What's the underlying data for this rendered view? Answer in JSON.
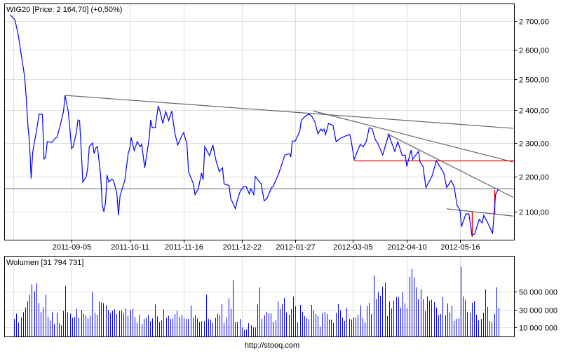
{
  "chart_data": [
    {
      "type": "line",
      "title": "WIG20 [Price: 2 164,70] (+0,50%)",
      "y_scale": "log",
      "ylim": [
        2022,
        2750
      ],
      "grid": true,
      "line_color": "#0000ff",
      "x_ticks": [
        "2011-09-05",
        "2011-10-11",
        "2011-11-16",
        "2011-12-22",
        "2012-01-27",
        "2012-03-05",
        "2012-04-10",
        "2012-05-16"
      ],
      "y_ticks": [
        {
          "value": 2700,
          "label": "2 700,00"
        },
        {
          "value": 2600,
          "label": "2 600,00"
        },
        {
          "value": 2500,
          "label": "2 500,00"
        },
        {
          "value": 2400,
          "label": "2 400,00"
        },
        {
          "value": 2300,
          "label": "2 300,00"
        },
        {
          "value": 2200,
          "label": "2 200,00"
        },
        {
          "value": 2100,
          "label": "2 100,00"
        }
      ],
      "last_price": 2164.7,
      "points": [
        [
          "2011-07-29",
          2722
        ],
        [
          "2011-08-01",
          2705
        ],
        [
          "2011-08-03",
          2652
        ],
        [
          "2011-08-05",
          2580
        ],
        [
          "2011-08-07",
          2509
        ],
        [
          "2011-08-08",
          2441
        ],
        [
          "2011-08-09",
          2353
        ],
        [
          "2011-08-10",
          2299
        ],
        [
          "2011-08-11",
          2194
        ],
        [
          "2011-08-12",
          2272
        ],
        [
          "2011-08-13",
          2300
        ],
        [
          "2011-08-14",
          2327
        ],
        [
          "2011-08-16",
          2389
        ],
        [
          "2011-08-18",
          2387
        ],
        [
          "2011-08-19",
          2251
        ],
        [
          "2011-08-20",
          2257
        ],
        [
          "2011-08-21",
          2303
        ],
        [
          "2011-08-24",
          2301
        ],
        [
          "2011-08-26",
          2314
        ],
        [
          "2011-08-27",
          2316
        ],
        [
          "2011-08-29",
          2353
        ],
        [
          "2011-08-31",
          2396
        ],
        [
          "2011-09-01",
          2448
        ],
        [
          "2011-09-03",
          2396
        ],
        [
          "2011-09-04",
          2342
        ],
        [
          "2011-09-05",
          2282
        ],
        [
          "2011-09-06",
          2288
        ],
        [
          "2011-09-08",
          2331
        ],
        [
          "2011-09-09",
          2370
        ],
        [
          "2011-09-10",
          2368
        ],
        [
          "2011-09-11",
          2278
        ],
        [
          "2011-09-12",
          2184
        ],
        [
          "2011-09-14",
          2198
        ],
        [
          "2011-09-15",
          2225
        ],
        [
          "2011-09-16",
          2288
        ],
        [
          "2011-09-18",
          2299
        ],
        [
          "2011-09-19",
          2267
        ],
        [
          "2011-09-20",
          2284
        ],
        [
          "2011-09-21",
          2288
        ],
        [
          "2011-09-23",
          2204
        ],
        [
          "2011-09-24",
          2118
        ],
        [
          "2011-09-25",
          2100
        ],
        [
          "2011-09-26",
          2124
        ],
        [
          "2011-09-27",
          2204
        ],
        [
          "2011-09-28",
          2184
        ],
        [
          "2011-09-30",
          2192
        ],
        [
          "2011-10-01",
          2188
        ],
        [
          "2011-10-03",
          2152
        ],
        [
          "2011-10-04",
          2090
        ],
        [
          "2011-10-05",
          2144
        ],
        [
          "2011-10-07",
          2174
        ],
        [
          "2011-10-08",
          2190
        ],
        [
          "2011-10-10",
          2267
        ],
        [
          "2011-10-11",
          2282
        ],
        [
          "2011-10-12",
          2316
        ],
        [
          "2011-10-14",
          2276
        ],
        [
          "2011-10-16",
          2303
        ],
        [
          "2011-10-18",
          2288
        ],
        [
          "2011-10-19",
          2295
        ],
        [
          "2011-10-21",
          2225
        ],
        [
          "2011-10-24",
          2314
        ],
        [
          "2011-10-25",
          2370
        ],
        [
          "2011-10-26",
          2346
        ],
        [
          "2011-10-28",
          2346
        ],
        [
          "2011-10-30",
          2414
        ],
        [
          "2011-10-31",
          2400
        ],
        [
          "2011-11-02",
          2359
        ],
        [
          "2011-11-04",
          2396
        ],
        [
          "2011-11-06",
          2368
        ],
        [
          "2011-11-08",
          2398
        ],
        [
          "2011-11-10",
          2331
        ],
        [
          "2011-11-12",
          2293
        ],
        [
          "2011-11-14",
          2314
        ],
        [
          "2011-11-16",
          2331
        ],
        [
          "2011-11-18",
          2295
        ],
        [
          "2011-11-19",
          2214
        ],
        [
          "2011-11-22",
          2178
        ],
        [
          "2011-11-23",
          2148
        ],
        [
          "2011-11-25",
          2164
        ],
        [
          "2011-11-27",
          2210
        ],
        [
          "2011-11-28",
          2190
        ],
        [
          "2011-11-29",
          2288
        ],
        [
          "2011-12-02",
          2261
        ],
        [
          "2011-12-04",
          2293
        ],
        [
          "2011-12-06",
          2246
        ],
        [
          "2011-12-08",
          2214
        ],
        [
          "2011-12-10",
          2225
        ],
        [
          "2011-12-11",
          2178
        ],
        [
          "2011-12-14",
          2174
        ],
        [
          "2011-12-15",
          2138
        ],
        [
          "2011-12-18",
          2108
        ],
        [
          "2011-12-19",
          2130
        ],
        [
          "2011-12-21",
          2158
        ],
        [
          "2011-12-23",
          2170
        ],
        [
          "2011-12-25",
          2170
        ],
        [
          "2011-12-27",
          2150
        ],
        [
          "2011-12-28",
          2164
        ],
        [
          "2011-12-30",
          2148
        ],
        [
          "2011-12-31",
          2200
        ],
        [
          "2012-01-04",
          2178
        ],
        [
          "2012-01-06",
          2130
        ],
        [
          "2012-01-08",
          2138
        ],
        [
          "2012-01-11",
          2168
        ],
        [
          "2012-01-12",
          2170
        ],
        [
          "2012-01-16",
          2210
        ],
        [
          "2012-01-20",
          2263
        ],
        [
          "2012-01-23",
          2267
        ],
        [
          "2012-01-24",
          2257
        ],
        [
          "2012-01-25",
          2305
        ],
        [
          "2012-01-27",
          2305
        ],
        [
          "2012-01-30",
          2335
        ],
        [
          "2012-01-31",
          2368
        ],
        [
          "2012-02-02",
          2379
        ],
        [
          "2012-02-05",
          2389
        ],
        [
          "2012-02-07",
          2381
        ],
        [
          "2012-02-09",
          2363
        ],
        [
          "2012-02-11",
          2327
        ],
        [
          "2012-02-13",
          2342
        ],
        [
          "2012-02-14",
          2335
        ],
        [
          "2012-02-15",
          2342
        ],
        [
          "2012-02-16",
          2325
        ],
        [
          "2012-02-18",
          2359
        ],
        [
          "2012-02-21",
          2353
        ],
        [
          "2012-02-23",
          2303
        ],
        [
          "2012-02-26",
          2314
        ],
        [
          "2012-02-29",
          2320
        ],
        [
          "2012-03-03",
          2325
        ],
        [
          "2012-03-04",
          2305
        ],
        [
          "2012-03-06",
          2250
        ],
        [
          "2012-03-10",
          2295
        ],
        [
          "2012-03-12",
          2288
        ],
        [
          "2012-03-14",
          2303
        ],
        [
          "2012-03-16",
          2346
        ],
        [
          "2012-03-18",
          2342
        ],
        [
          "2012-03-20",
          2310
        ],
        [
          "2012-03-22",
          2295
        ],
        [
          "2012-03-25",
          2263
        ],
        [
          "2012-03-27",
          2295
        ],
        [
          "2012-03-29",
          2325
        ],
        [
          "2012-04-02",
          2274
        ],
        [
          "2012-04-04",
          2303
        ],
        [
          "2012-04-07",
          2261
        ],
        [
          "2012-04-09",
          2263
        ],
        [
          "2012-04-10",
          2229
        ],
        [
          "2012-04-13",
          2278
        ],
        [
          "2012-04-14",
          2250
        ],
        [
          "2012-04-18",
          2274
        ],
        [
          "2012-04-19",
          2242
        ],
        [
          "2012-04-21",
          2229
        ],
        [
          "2012-04-23",
          2168
        ],
        [
          "2012-04-27",
          2200
        ],
        [
          "2012-04-30",
          2246
        ],
        [
          "2012-05-05",
          2210
        ],
        [
          "2012-05-07",
          2168
        ],
        [
          "2012-05-10",
          2188
        ],
        [
          "2012-05-12",
          2170
        ],
        [
          "2012-05-14",
          2118
        ],
        [
          "2012-05-16",
          2104
        ],
        [
          "2012-05-17",
          2059
        ],
        [
          "2012-05-20",
          2094
        ],
        [
          "2012-05-22",
          2094
        ],
        [
          "2012-05-24",
          2036
        ],
        [
          "2012-05-26",
          2040
        ],
        [
          "2012-05-29",
          2079
        ],
        [
          "2012-05-31",
          2069
        ],
        [
          "2012-06-01",
          2090
        ],
        [
          "2012-06-03",
          2075
        ],
        [
          "2012-06-05",
          2059
        ],
        [
          "2012-06-07",
          2040
        ],
        [
          "2012-06-08",
          2094
        ],
        [
          "2012-06-09",
          2148
        ],
        [
          "2012-06-11",
          2165
        ]
      ],
      "annotations": {
        "trendlines": [
          {
            "from": [
              "2011-09-01",
              2448
            ],
            "to": [
              "2012-06-21",
              2344
            ],
            "color": "#666666"
          },
          {
            "from": [
              "2012-02-08",
              2398
            ],
            "to": [
              "2012-06-21",
              2242
            ],
            "color": "#666666"
          },
          {
            "from": [
              "2012-03-28",
              2327
            ],
            "to": [
              "2012-06-21",
              2140
            ],
            "color": "#666666"
          },
          {
            "from": [
              "2012-05-07",
              2108
            ],
            "to": [
              "2012-06-21",
              2088
            ],
            "color": "#666666"
          }
        ],
        "horizontal_levels": [
          {
            "from": "2012-03-06",
            "price": 2246,
            "color": "#ff0000"
          }
        ],
        "vertical_segments": [
          {
            "date": "2012-05-24",
            "from": 2100,
            "to": 2032,
            "color": "#ff0000"
          },
          {
            "date": "2012-06-08",
            "from": 2161,
            "to": 2094,
            "color": "#ff0000"
          }
        ],
        "last_price_line_color": "#666666"
      }
    },
    {
      "type": "bar",
      "title": "Wolumen [31 794 731]",
      "ylim": [
        0,
        90000000
      ],
      "grid": true,
      "bar_color": "#0000ff",
      "y_ticks": [
        {
          "value": 50000000,
          "label": "50 000 000"
        },
        {
          "value": 30000000,
          "label": "30 000 000"
        },
        {
          "value": 10000000,
          "label": "10 000 000"
        }
      ],
      "values_millions": [
        19.4,
        25.3,
        15.5,
        21.4,
        27.1,
        32.3,
        39.5,
        46.4,
        58.1,
        50.3,
        59.6,
        37.2,
        27.1,
        32.5,
        46.4,
        21.7,
        17.8,
        27.1,
        13.9,
        26.3,
        14.7,
        12.4,
        28.6,
        56.5,
        27.1,
        25.5,
        20.9,
        21.7,
        31.0,
        20.9,
        29.4,
        25.5,
        23.2,
        20.1,
        23.2,
        49.5,
        26.3,
        24.0,
        39.5,
        37.9,
        37.2,
        34.8,
        29.4,
        26.3,
        28.6,
        30.2,
        24.8,
        28.6,
        28.6,
        26.3,
        31.0,
        23.2,
        29.4,
        31.0,
        21.7,
        15.5,
        24.0,
        13.9,
        19.4,
        20.9,
        24.0,
        17.0,
        20.1,
        35.6,
        22.4,
        16.3,
        17.8,
        30.2,
        20.9,
        23.2,
        19.4,
        20.1,
        24.8,
        28.6,
        21.7,
        24.0,
        20.1,
        19.4,
        19.4,
        34.8,
        20.9,
        24.0,
        20.1,
        16.3,
        17.0,
        17.0,
        46.4,
        19.4,
        18.6,
        15.5,
        20.9,
        25.5,
        24.0,
        36.4,
        14.7,
        20.9,
        42.6,
        31.0,
        62.7,
        16.3,
        16.3,
        19.4,
        10.1,
        7.0,
        7.7,
        14.7,
        12.4,
        10.1,
        10.1,
        35.6,
        54.8,
        19.6,
        23.5,
        27.4,
        25.8,
        25.8,
        16.4,
        18.0,
        39.2,
        30.5,
        36.0,
        43.1,
        26.6,
        24.3,
        30.5,
        44.6,
        33.7,
        15.7,
        35.2,
        27.4,
        22.7,
        20.4,
        19.6,
        35.2,
        29.0,
        25.1,
        22.7,
        11.0,
        25.8,
        27.4,
        25.1,
        18.8,
        18.8,
        14.9,
        26.6,
        36.0,
        29.0,
        21.1,
        17.2,
        32.1,
        19.6,
        18.8,
        21.1,
        21.1,
        24.3,
        34.5,
        20.4,
        15.7,
        34.5,
        37.6,
        25.1,
        68.1,
        41.5,
        49.3,
        45.4,
        55.6,
        60.3,
        22.7,
        39.2,
        31.3,
        39.9,
        43.8,
        43.8,
        32.1,
        49.3,
        36.8,
        31.3,
        66.6,
        75.2,
        65.8,
        54.8,
        41.5,
        52.5,
        41.5,
        28.2,
        44.6,
        39.9,
        40.7,
        38.4,
        32.1,
        23.5,
        25.1,
        43.8,
        23.5,
        36.8,
        26.6,
        34.5,
        17.2,
        19.6,
        20.4,
        77.5,
        44.6,
        40.7,
        27.4,
        26.6,
        37.6,
        39.2,
        24.3,
        18.0,
        19.6,
        26.6,
        52.5,
        32.9,
        17.2,
        16.4,
        25.1,
        54.8,
        32.1
      ]
    }
  ],
  "footer": {
    "source_link": "http://stooq.com"
  },
  "colors": {
    "grid": "#dddddd",
    "frame": "#000000",
    "price_line": "#0000ff",
    "volume_bar": "#0000ff",
    "trendline": "#666666",
    "signal": "#ff0000"
  }
}
